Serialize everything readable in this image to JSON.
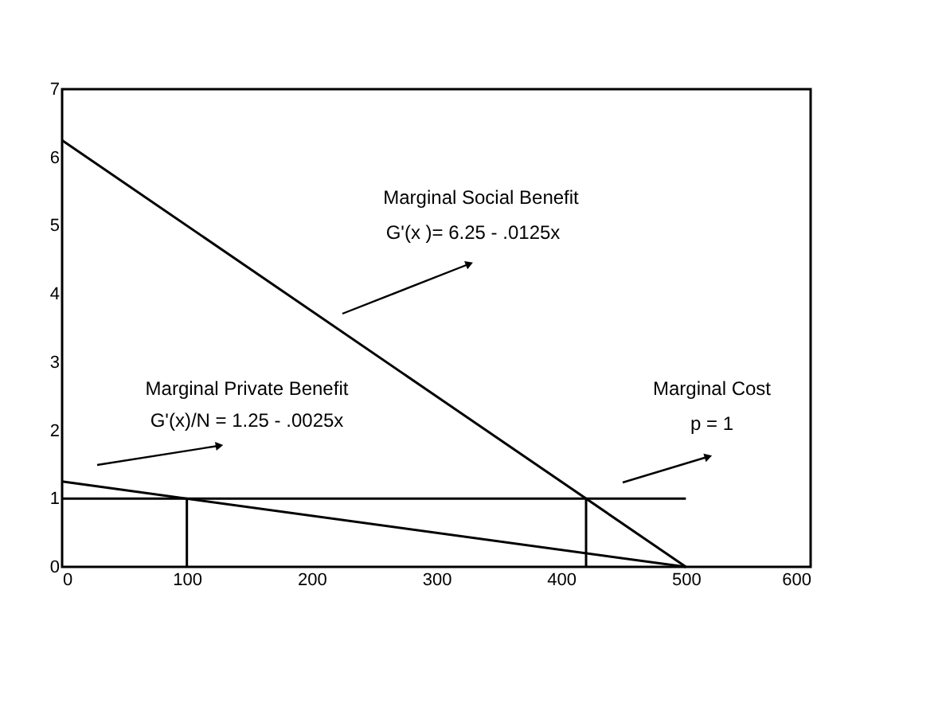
{
  "chart_data": {
    "type": "line",
    "xlim": [
      0,
      600
    ],
    "xticks": [
      0,
      100,
      200,
      300,
      400,
      500,
      600
    ],
    "ylim": [
      0,
      7
    ],
    "yticks": [
      0,
      1,
      2,
      3,
      4,
      5,
      6,
      7
    ],
    "grid": false,
    "marker": "none",
    "line_style": "solid",
    "series": [
      {
        "color": "#000000",
        "x": [
          0,
          500
        ],
        "values": [
          6.25,
          0
        ]
      },
      {
        "color": "#000000",
        "x": [
          0,
          500
        ],
        "values": [
          1.25,
          0
        ]
      },
      {
        "color": "#000000",
        "x": [
          0,
          500
        ],
        "values": [
          1,
          1
        ]
      },
      {
        "color": "#000000",
        "x": [
          100,
          100
        ],
        "values": [
          0,
          1
        ]
      },
      {
        "color": "#000000",
        "x": [
          420,
          420
        ],
        "values": [
          0,
          1
        ]
      }
    ],
    "annotations": [
      "Marginal Social Benefit",
      "G'(x )= 6.25 - .0125x",
      "Marginal Private Benefit",
      "G'(x)/N = 1.25 - .0025x",
      "Marginal Cost",
      "p = 1"
    ]
  }
}
